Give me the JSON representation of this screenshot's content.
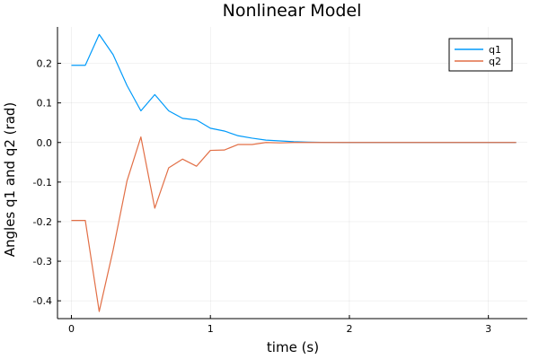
{
  "chart_data": {
    "type": "line",
    "title": "Nonlinear Model",
    "xlabel": "time (s)",
    "ylabel": "Angles q1 and q2 (rad)",
    "xlim": [
      -0.1,
      3.28
    ],
    "ylim": [
      -0.445,
      0.292
    ],
    "x_ticks": [
      0,
      1,
      2,
      3
    ],
    "y_ticks": [
      -0.4,
      -0.3,
      -0.2,
      -0.1,
      0.0,
      0.1,
      0.2
    ],
    "x_tick_labels": [
      "0",
      "1",
      "2",
      "3"
    ],
    "y_tick_labels": [
      "-0.4",
      "-0.3",
      "-0.2",
      "-0.1",
      "0.0",
      "0.1",
      "0.2"
    ],
    "grid": true,
    "legend_position": "top-right",
    "series": [
      {
        "name": "q1",
        "color": "#009AFA",
        "x": [
          0.0,
          0.1,
          0.2,
          0.3,
          0.4,
          0.5,
          0.6,
          0.7,
          0.8,
          0.9,
          1.0,
          1.1,
          1.2,
          1.3,
          1.4,
          1.5,
          1.6,
          1.7,
          1.8,
          1.9,
          2.0,
          2.5,
          3.0,
          3.2
        ],
        "y": [
          0.195,
          0.195,
          0.273,
          0.222,
          0.144,
          0.08,
          0.121,
          0.08,
          0.061,
          0.057,
          0.036,
          0.029,
          0.017,
          0.011,
          0.006,
          0.004,
          0.002,
          0.001,
          0.0005,
          0.0002,
          0.0,
          0.0,
          0.0,
          0.0
        ]
      },
      {
        "name": "q2",
        "color": "#E26F46",
        "x": [
          0.0,
          0.1,
          0.2,
          0.3,
          0.4,
          0.5,
          0.6,
          0.7,
          0.8,
          0.9,
          1.0,
          1.1,
          1.2,
          1.3,
          1.4,
          1.5,
          1.6,
          1.7,
          1.8,
          1.9,
          2.0,
          2.5,
          3.0,
          3.2
        ],
        "y": [
          -0.197,
          -0.197,
          -0.427,
          -0.272,
          -0.097,
          0.014,
          -0.166,
          -0.064,
          -0.042,
          -0.06,
          -0.02,
          -0.019,
          -0.005,
          -0.005,
          0.0,
          -0.001,
          0.0,
          0.0,
          0.0,
          0.0,
          0.0,
          0.0,
          0.0,
          0.0
        ]
      }
    ]
  }
}
